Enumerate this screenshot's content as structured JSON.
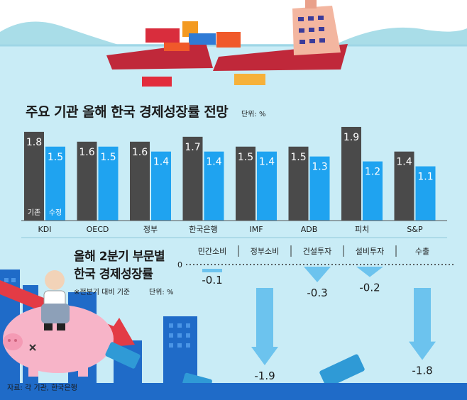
{
  "chart_data": [
    {
      "type": "bar",
      "title": "주요 기관 올해 한국 경제성장률 전망",
      "unit": "단위: %",
      "categories": [
        "KDI",
        "OECD",
        "정부",
        "한국은행",
        "IMF",
        "ADB",
        "피치",
        "S&P"
      ],
      "series": [
        {
          "name": "기존",
          "values": [
            1.8,
            1.6,
            1.6,
            1.7,
            1.5,
            1.5,
            1.9,
            1.4
          ],
          "color": "#4a4a4a"
        },
        {
          "name": "수정",
          "values": [
            1.5,
            1.5,
            1.4,
            1.4,
            1.4,
            1.3,
            1.2,
            1.1
          ],
          "color": "#1fa3f0"
        }
      ],
      "value_labels": [
        [
          "1.8",
          "1.6",
          "1.6",
          "1.7",
          "1.5",
          "1.5",
          "1.9",
          "1.4"
        ],
        [
          "1.5",
          "1.5",
          "1.4",
          "1.4",
          "1.4",
          "1.3",
          "1.2",
          "1.1"
        ]
      ],
      "ylim": [
        0,
        2.0
      ]
    },
    {
      "type": "bar",
      "title": [
        "올해 2분기 부문별",
        "한국 경제성장률"
      ],
      "note": "※전분기 대비 기준",
      "unit": "단위: %",
      "categories": [
        "민간소비",
        "정부소비",
        "건설투자",
        "설비투자",
        "수출"
      ],
      "values": [
        -0.1,
        -1.9,
        -0.3,
        -0.2,
        -1.8
      ],
      "value_labels": [
        "-0.1",
        "-1.9",
        "-0.3",
        "-0.2",
        "-1.8"
      ],
      "zero_label": "0",
      "ylim": [
        -2.0,
        0
      ]
    }
  ],
  "source": "자료: 각 기관, 한국은행",
  "colors": {
    "sky": "#ffffff",
    "sea": "#c9ecf6",
    "old_bar": "#4a4a4a",
    "new_bar": "#1fa3f0",
    "arrow": "#6cc3ee",
    "piggy": "#f7b4c8",
    "building": "#1f6bc8",
    "down_arrow_red": "#e33b45",
    "ship_hull": "#c0283a"
  },
  "icons": [
    "sinking-ship-icon",
    "cargo-container-icon",
    "piggy-bank-icon",
    "worried-man-icon",
    "falling-red-arrow-icon",
    "banknote-icon",
    "building-icon"
  ]
}
